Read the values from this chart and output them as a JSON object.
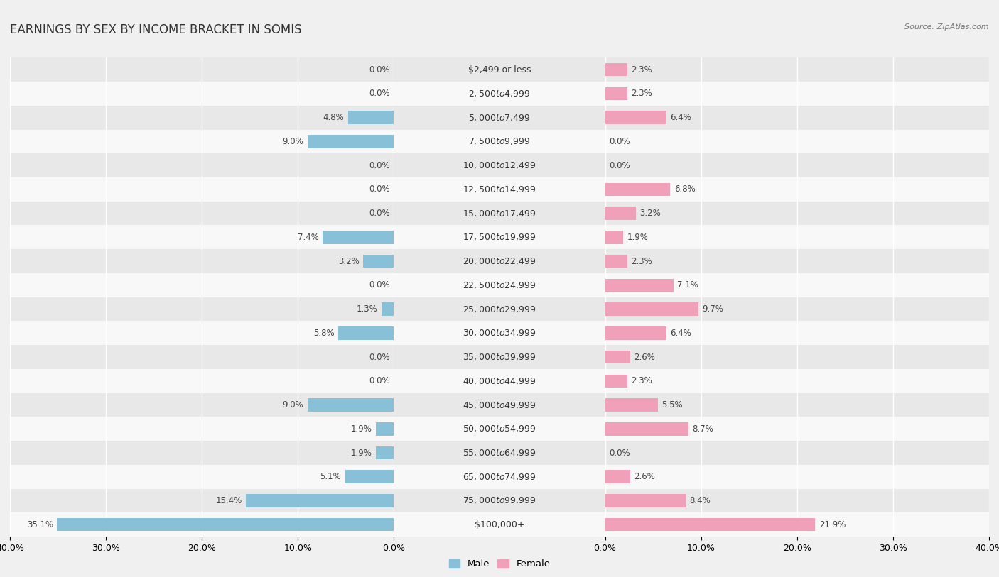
{
  "title": "EARNINGS BY SEX BY INCOME BRACKET IN SOMIS",
  "source": "Source: ZipAtlas.com",
  "categories": [
    "$2,499 or less",
    "$2,500 to $4,999",
    "$5,000 to $7,499",
    "$7,500 to $9,999",
    "$10,000 to $12,499",
    "$12,500 to $14,999",
    "$15,000 to $17,499",
    "$17,500 to $19,999",
    "$20,000 to $22,499",
    "$22,500 to $24,999",
    "$25,000 to $29,999",
    "$30,000 to $34,999",
    "$35,000 to $39,999",
    "$40,000 to $44,999",
    "$45,000 to $49,999",
    "$50,000 to $54,999",
    "$55,000 to $64,999",
    "$65,000 to $74,999",
    "$75,000 to $99,999",
    "$100,000+"
  ],
  "male": [
    0.0,
    0.0,
    4.8,
    9.0,
    0.0,
    0.0,
    0.0,
    7.4,
    3.2,
    0.0,
    1.3,
    5.8,
    0.0,
    0.0,
    9.0,
    1.9,
    1.9,
    5.1,
    15.4,
    35.1
  ],
  "female": [
    2.3,
    2.3,
    6.4,
    0.0,
    0.0,
    6.8,
    3.2,
    1.9,
    2.3,
    7.1,
    9.7,
    6.4,
    2.6,
    2.3,
    5.5,
    8.7,
    0.0,
    2.6,
    8.4,
    21.9
  ],
  "male_color": "#88c0d8",
  "female_color": "#f0a0b8",
  "axis_max": 40.0,
  "background_color": "#f0f0f0",
  "row_colors": [
    "#e8e8e8",
    "#f8f8f8"
  ],
  "title_fontsize": 12,
  "tick_fontsize": 9,
  "label_fontsize": 9,
  "value_fontsize": 8.5,
  "bar_height": 0.55,
  "bar_gap": 0.025
}
